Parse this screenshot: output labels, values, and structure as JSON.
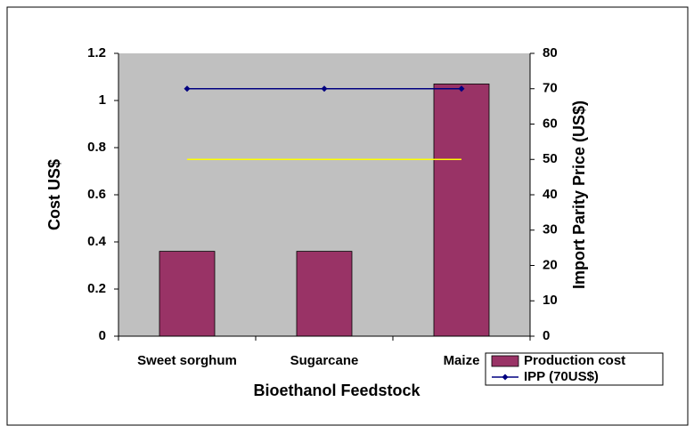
{
  "chart_data": {
    "type": "bar",
    "categories": [
      "Sweet sorghum",
      "Sugarcane",
      "Maize"
    ],
    "series": [
      {
        "name": "Production cost",
        "type": "bar",
        "color": "#993366",
        "values": [
          0.36,
          0.36,
          1.07
        ]
      },
      {
        "name": "IPP (70US$)",
        "type": "line",
        "color": "#000080",
        "values": [
          70,
          70,
          70
        ],
        "axis": "y2"
      },
      {
        "type": "line",
        "color": "#ffff00",
        "values": [
          50,
          50,
          50
        ],
        "axis": "y2"
      }
    ],
    "x_label": "Bioethanol Feedstock",
    "y_label": "Cost US$",
    "y2_label": "Import Parity Price (US$)",
    "ylim": [
      0,
      1.2
    ],
    "yticks": [
      0,
      0.2,
      0.4,
      0.6,
      0.8,
      1,
      1.2
    ],
    "y2lim": [
      0,
      80
    ],
    "y2ticks": [
      0,
      10,
      20,
      30,
      40,
      50,
      60,
      70,
      80
    ],
    "plot_background": "#c0c0c0",
    "legend": "lower right"
  }
}
